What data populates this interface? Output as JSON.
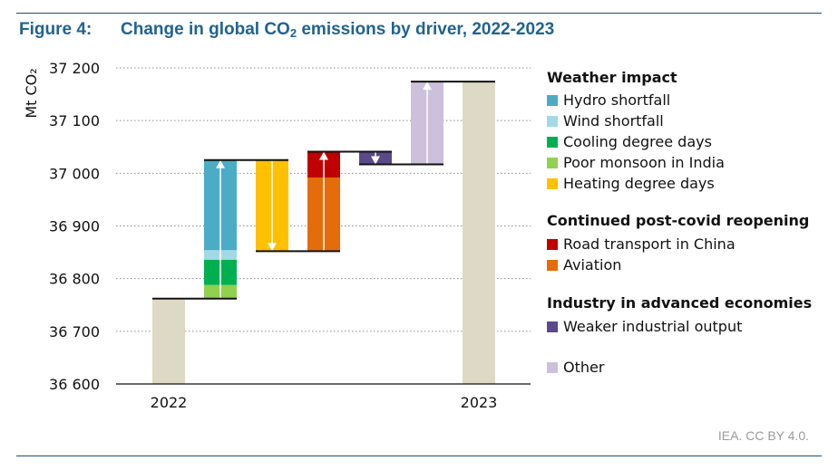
{
  "figure": {
    "label": "Figure 4:",
    "title_prefix": "Change in global CO",
    "title_subscript": "2",
    "title_suffix": " emissions by driver, 2022-2023",
    "source": "IEA. CC BY 4.0."
  },
  "chart_data": {
    "type": "bar",
    "subtype": "waterfall",
    "ylabel": "Mt CO₂",
    "ylim": [
      36600,
      37200
    ],
    "yticks": [
      36600,
      36700,
      36800,
      36900,
      37000,
      37100,
      37200
    ],
    "ytick_labels": [
      "36 600",
      "36 700",
      "36 800",
      "36 900",
      "37 000",
      "37 100",
      "37 200"
    ],
    "grid": true,
    "legend_position": "right",
    "x_labels": [
      "2022",
      "2023"
    ],
    "totals": [
      {
        "label": "2022",
        "value": 36762,
        "color": "#ddd9c4"
      },
      {
        "label": "2023",
        "value": 37174,
        "color": "#ddd9c4"
      }
    ],
    "steps": [
      {
        "driver": "Weather impact",
        "direction": "up",
        "from": 36762,
        "to": 37025,
        "segments": [
          {
            "name": "Poor monsoon in India",
            "value": 26,
            "color": "#92d050"
          },
          {
            "name": "Cooling degree days",
            "value": 48,
            "color": "#00b050"
          },
          {
            "name": "Wind shortfall",
            "value": 18,
            "color": "#a3d9e6"
          },
          {
            "name": "Hydro shortfall",
            "value": 171,
            "color": "#4bacc6"
          }
        ]
      },
      {
        "driver": "Heating degree days",
        "direction": "down",
        "from": 37025,
        "to": 36852,
        "segments": [
          {
            "name": "Heating degree days",
            "value": -173,
            "color": "#ffc000"
          }
        ]
      },
      {
        "driver": "Continued post-covid reopening",
        "direction": "up",
        "from": 36852,
        "to": 37041,
        "segments": [
          {
            "name": "Aviation",
            "value": 140,
            "color": "#e46c0a"
          },
          {
            "name": "Road transport in China",
            "value": 49,
            "color": "#c00000"
          }
        ]
      },
      {
        "driver": "Industry in advanced economies",
        "direction": "down",
        "from": 37041,
        "to": 37017,
        "segments": [
          {
            "name": "Weaker industrial output",
            "value": -24,
            "color": "#5b4a8a"
          }
        ]
      },
      {
        "driver": "Other",
        "direction": "up",
        "from": 37017,
        "to": 37174,
        "segments": [
          {
            "name": "Other",
            "value": 157,
            "color": "#ccc0da"
          }
        ]
      }
    ]
  },
  "legend": {
    "groups": [
      {
        "title": "Weather impact",
        "items": [
          {
            "label": "Hydro shortfall",
            "color": "#4bacc6"
          },
          {
            "label": "Wind shortfall",
            "color": "#a3d9e6"
          },
          {
            "label": "Cooling degree days",
            "color": "#00b050"
          },
          {
            "label": "Poor monsoon in India",
            "color": "#92d050"
          },
          {
            "label": "Heating degree days",
            "color": "#ffc000"
          }
        ]
      },
      {
        "title": "Continued post-covid reopening",
        "items": [
          {
            "label": "Road transport in China",
            "color": "#c00000"
          },
          {
            "label": "Aviation",
            "color": "#e46c0a"
          }
        ]
      },
      {
        "title": "Industry in advanced economies",
        "items": [
          {
            "label": "Weaker industrial output",
            "color": "#5b4a8a"
          }
        ]
      },
      {
        "title": "",
        "items": [
          {
            "label": "Other",
            "color": "#ccc0da"
          }
        ]
      }
    ]
  }
}
